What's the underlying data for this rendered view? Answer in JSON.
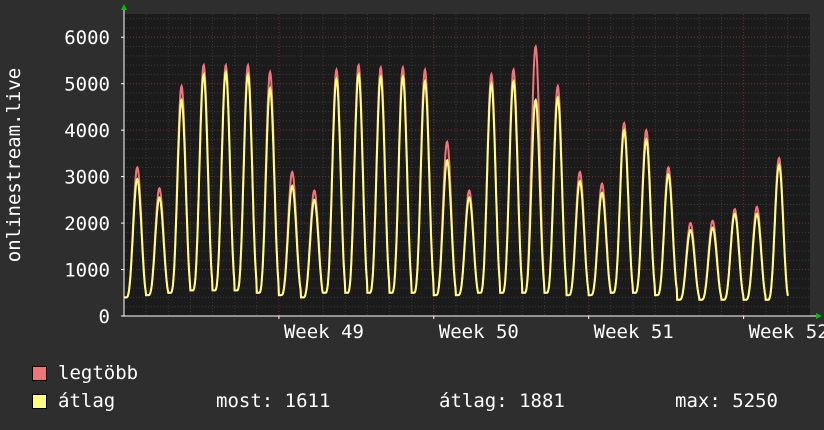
{
  "colors": {
    "background": "#2e2e2e",
    "plot_background": "#1b1b1b",
    "grid_major": "#6a2c2c",
    "grid_minor": "#3a3a3a",
    "text": "#ffffff",
    "max_series": "#f0757a",
    "avg_series": "#ffff80"
  },
  "chart_data": {
    "type": "area",
    "ylabel": "onlinestream.live",
    "ylim": [
      0,
      6500
    ],
    "yticks": [
      0,
      1000,
      2000,
      3000,
      4000,
      5000,
      6000
    ],
    "ytick_labels": [
      "0",
      "1000",
      "2000",
      "3000",
      "4000",
      "5000",
      "6000"
    ],
    "xlim_days": [
      0,
      31
    ],
    "week_labels": [
      {
        "label": "Week 49",
        "day": 7
      },
      {
        "label": "Week 50",
        "day": 14
      },
      {
        "label": "Week 51",
        "day": 21
      },
      {
        "label": "Week 52",
        "day": 28
      }
    ],
    "daily_peaks": {
      "days": [
        0,
        1,
        2,
        3,
        4,
        5,
        6,
        7,
        8,
        9,
        10,
        11,
        12,
        13,
        14,
        15,
        16,
        17,
        18,
        19,
        20,
        21,
        22,
        23,
        24,
        25,
        26,
        27,
        28,
        29,
        30
      ],
      "max": [
        3200,
        2750,
        4950,
        5400,
        5400,
        5400,
        5250,
        3100,
        2700,
        5300,
        5400,
        5350,
        5350,
        5300,
        3750,
        2700,
        5200,
        5300,
        5800,
        4950,
        3100,
        2850,
        4150,
        4000,
        3200,
        2000,
        2050,
        2300,
        2350,
        3400,
        0
      ],
      "avg": [
        2950,
        2550,
        4650,
        5200,
        5250,
        5200,
        4900,
        2800,
        2500,
        5100,
        5200,
        5150,
        5150,
        5050,
        3350,
        2550,
        5000,
        5050,
        4650,
        4700,
        2900,
        2650,
        4000,
        3800,
        3050,
        1850,
        1900,
        2200,
        2200,
        3250,
        0
      ],
      "min": [
        400,
        450,
        500,
        550,
        550,
        550,
        500,
        450,
        400,
        500,
        500,
        500,
        500,
        500,
        450,
        450,
        500,
        500,
        500,
        500,
        450,
        450,
        500,
        500,
        450,
        350,
        350,
        350,
        350,
        350,
        0
      ]
    },
    "series": [
      {
        "name": "legtöbb",
        "color": "#f0757a"
      },
      {
        "name": "átlag",
        "color": "#ffff80"
      }
    ]
  },
  "legend": {
    "max_label": "legtöbb",
    "avg_label": "átlag",
    "now_text": "most: 1611",
    "avg_text": "átlag: 1881",
    "max_text": "max: 5250"
  }
}
